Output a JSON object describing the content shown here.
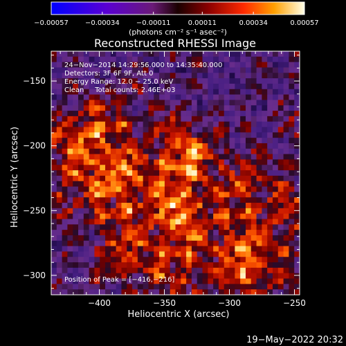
{
  "chart_data": {
    "type": "heatmap",
    "title": "Reconstructed RHESSI Image",
    "xlabel": "Heliocentric X (arcsec)",
    "ylabel": "Heliocentric Y (arcsec)",
    "xlim": [
      -437,
      -246
    ],
    "ylim": [
      -315,
      -127
    ],
    "x_ticks": [
      -400,
      -350,
      -300,
      -250
    ],
    "y_ticks": [
      -150,
      -200,
      -250,
      -300
    ],
    "x_tick_labels": [
      "−400",
      "−350",
      "−300",
      "−250"
    ],
    "y_tick_labels": [
      "−150",
      "−200",
      "−250",
      "−300"
    ],
    "colorbar": {
      "min": -0.00057,
      "max": 0.00057,
      "ticks": [
        -0.00057,
        -0.00034,
        -0.00011,
        0.00011,
        0.00034,
        0.00057
      ],
      "tick_labels": [
        "−0.00057",
        "−0.00034",
        "−0.00011",
        "0.00011",
        "0.00034",
        "0.00057"
      ],
      "unit": "(photons cm⁻² s⁻¹ asec⁻²)"
    },
    "annotations": [
      "24−Nov−2014 14:29:56.000 to 14:35:40.000",
      "Detectors: 3F 6F 9F, Att 0",
      "Energy Range: 12.0 − 25.0 keV",
      "Clean     Total counts: 2.46E+03"
    ],
    "peak_label": "Position of Peak = [−416,−216]",
    "peak": [
      -416,
      -216
    ]
  },
  "footer": {
    "timestamp": "19−May−2022 20:32"
  },
  "colors": {
    "background": "#000000",
    "text": "#ffffff"
  }
}
